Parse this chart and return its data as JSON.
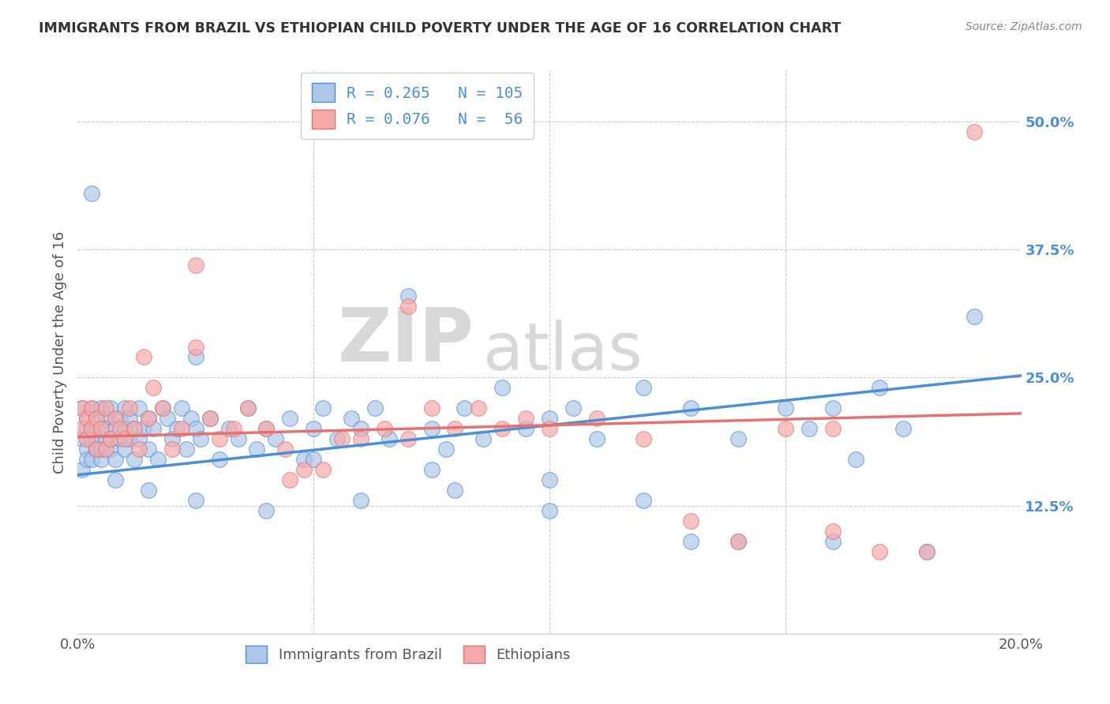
{
  "title": "IMMIGRANTS FROM BRAZIL VS ETHIOPIAN CHILD POVERTY UNDER THE AGE OF 16 CORRELATION CHART",
  "source": "Source: ZipAtlas.com",
  "ylabel": "Child Poverty Under the Age of 16",
  "brazil_R": 0.265,
  "brazil_N": 105,
  "ethiopia_R": 0.076,
  "ethiopia_N": 56,
  "xlim": [
    0.0,
    0.2
  ],
  "ylim": [
    0.0,
    0.55
  ],
  "yticks": [
    0.0,
    0.125,
    0.25,
    0.375,
    0.5
  ],
  "ytick_labels": [
    "",
    "12.5%",
    "25.0%",
    "37.5%",
    "50.0%"
  ],
  "xticks": [
    0.0,
    0.05,
    0.1,
    0.15,
    0.2
  ],
  "xtick_labels": [
    "0.0%",
    "",
    "",
    "",
    "20.0%"
  ],
  "grid_color": "#cccccc",
  "background_color": "#ffffff",
  "brazil_color": "#aec6e8",
  "ethiopia_color": "#f4aaaa",
  "brazil_line_color": "#4a90d9",
  "ethiopia_line_color": "#e87070",
  "watermark_zip": "ZIP",
  "watermark_atlas": "atlas",
  "brazil_scatter_x": [
    0.001,
    0.001,
    0.001,
    0.002,
    0.002,
    0.002,
    0.002,
    0.003,
    0.003,
    0.003,
    0.003,
    0.004,
    0.004,
    0.004,
    0.005,
    0.005,
    0.005,
    0.005,
    0.006,
    0.006,
    0.006,
    0.007,
    0.007,
    0.007,
    0.008,
    0.008,
    0.009,
    0.009,
    0.01,
    0.01,
    0.01,
    0.011,
    0.011,
    0.012,
    0.012,
    0.013,
    0.013,
    0.014,
    0.015,
    0.015,
    0.016,
    0.017,
    0.018,
    0.019,
    0.02,
    0.021,
    0.022,
    0.023,
    0.024,
    0.025,
    0.026,
    0.028,
    0.03,
    0.032,
    0.034,
    0.036,
    0.038,
    0.04,
    0.042,
    0.045,
    0.048,
    0.05,
    0.052,
    0.055,
    0.058,
    0.06,
    0.063,
    0.066,
    0.07,
    0.075,
    0.078,
    0.082,
    0.086,
    0.09,
    0.095,
    0.1,
    0.105,
    0.11,
    0.12,
    0.13,
    0.14,
    0.15,
    0.155,
    0.16,
    0.165,
    0.17,
    0.175,
    0.003,
    0.008,
    0.015,
    0.025,
    0.04,
    0.06,
    0.08,
    0.1,
    0.12,
    0.14,
    0.16,
    0.18,
    0.19,
    0.025,
    0.05,
    0.075,
    0.1,
    0.13
  ],
  "brazil_scatter_y": [
    0.22,
    0.19,
    0.16,
    0.2,
    0.18,
    0.17,
    0.21,
    0.19,
    0.2,
    0.17,
    0.22,
    0.18,
    0.21,
    0.19,
    0.2,
    0.22,
    0.17,
    0.18,
    0.19,
    0.21,
    0.2,
    0.18,
    0.22,
    0.19,
    0.2,
    0.17,
    0.21,
    0.19,
    0.2,
    0.22,
    0.18,
    0.19,
    0.21,
    0.2,
    0.17,
    0.22,
    0.19,
    0.2,
    0.21,
    0.18,
    0.2,
    0.17,
    0.22,
    0.21,
    0.19,
    0.2,
    0.22,
    0.18,
    0.21,
    0.2,
    0.19,
    0.21,
    0.17,
    0.2,
    0.19,
    0.22,
    0.18,
    0.2,
    0.19,
    0.21,
    0.17,
    0.2,
    0.22,
    0.19,
    0.21,
    0.2,
    0.22,
    0.19,
    0.33,
    0.2,
    0.18,
    0.22,
    0.19,
    0.24,
    0.2,
    0.21,
    0.22,
    0.19,
    0.24,
    0.22,
    0.19,
    0.22,
    0.2,
    0.22,
    0.17,
    0.24,
    0.2,
    0.43,
    0.15,
    0.14,
    0.13,
    0.12,
    0.13,
    0.14,
    0.15,
    0.13,
    0.09,
    0.09,
    0.08,
    0.31,
    0.27,
    0.17,
    0.16,
    0.12,
    0.09
  ],
  "ethiopia_scatter_x": [
    0.001,
    0.001,
    0.002,
    0.002,
    0.003,
    0.003,
    0.004,
    0.004,
    0.005,
    0.006,
    0.006,
    0.007,
    0.008,
    0.009,
    0.01,
    0.011,
    0.012,
    0.013,
    0.014,
    0.015,
    0.016,
    0.018,
    0.02,
    0.022,
    0.025,
    0.028,
    0.03,
    0.033,
    0.036,
    0.04,
    0.044,
    0.048,
    0.052,
    0.056,
    0.06,
    0.065,
    0.07,
    0.075,
    0.08,
    0.085,
    0.09,
    0.095,
    0.1,
    0.11,
    0.12,
    0.13,
    0.14,
    0.15,
    0.16,
    0.17,
    0.18,
    0.19,
    0.025,
    0.045,
    0.07,
    0.16
  ],
  "ethiopia_scatter_y": [
    0.2,
    0.22,
    0.19,
    0.21,
    0.2,
    0.22,
    0.18,
    0.21,
    0.2,
    0.22,
    0.18,
    0.19,
    0.21,
    0.2,
    0.19,
    0.22,
    0.2,
    0.18,
    0.27,
    0.21,
    0.24,
    0.22,
    0.18,
    0.2,
    0.36,
    0.21,
    0.19,
    0.2,
    0.22,
    0.2,
    0.18,
    0.16,
    0.16,
    0.19,
    0.19,
    0.2,
    0.19,
    0.22,
    0.2,
    0.22,
    0.2,
    0.21,
    0.2,
    0.21,
    0.19,
    0.11,
    0.09,
    0.2,
    0.2,
    0.08,
    0.08,
    0.49,
    0.28,
    0.15,
    0.32,
    0.1
  ]
}
